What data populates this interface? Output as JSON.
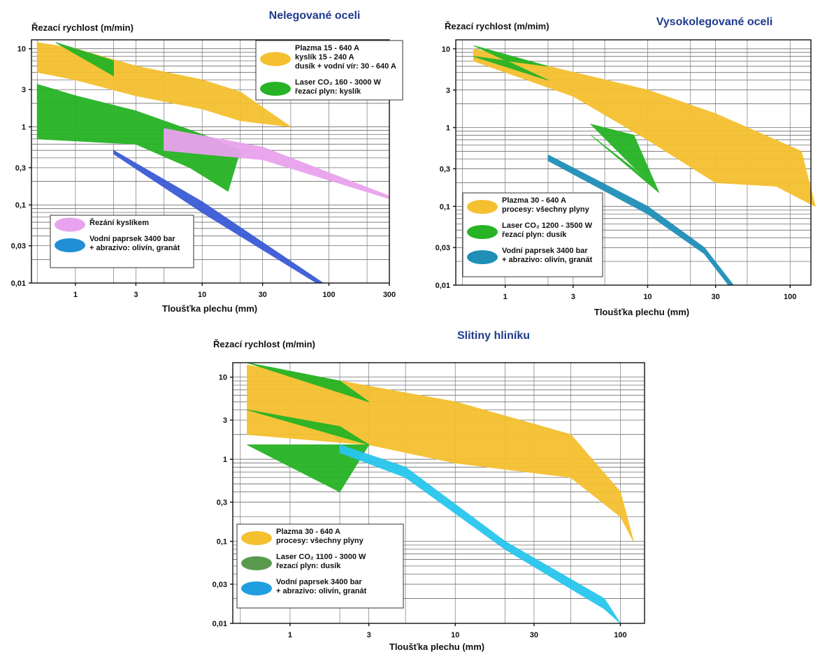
{
  "chart_data": [
    {
      "id": "nelegovane",
      "type": "area",
      "title": "Nelegované oceli",
      "ylabel": "Řezací rychlost (m/min)",
      "xlabel": "Tloušťka plechu (mm)",
      "x_scale": "log",
      "y_scale": "log",
      "xlim": [
        0.45,
        300
      ],
      "ylim": [
        0.01,
        13
      ],
      "xticks": [
        {
          "v": 1,
          "label": "1"
        },
        {
          "v": 3,
          "label": "3"
        },
        {
          "v": 10,
          "label": "10"
        },
        {
          "v": 30,
          "label": "30"
        },
        {
          "v": 100,
          "label": "100"
        },
        {
          "v": 300,
          "label": "300"
        }
      ],
      "yticks": [
        {
          "v": 10,
          "label": "10"
        },
        {
          "v": 3,
          "label": "3"
        },
        {
          "v": 1,
          "label": "1"
        },
        {
          "v": 0.3,
          "label": "0,3"
        },
        {
          "v": 0.1,
          "label": "0,1"
        },
        {
          "v": 0.03,
          "label": "0,03"
        },
        {
          "v": 0.01,
          "label": "0,01"
        }
      ],
      "grid": true,
      "legends": [
        {
          "position": "top-right",
          "entries": [
            {
              "color": "#f5c02f",
              "lines": [
                "Plazma 15 - 640 A",
                "kyslík 15 - 240 A",
                "dusík + vodní vír: 30 - 640 A"
              ]
            },
            {
              "color": "#27b325",
              "lines": [
                "Laser CO₂ 160 - 3000 W",
                "řezací plyn: kyslík"
              ]
            }
          ]
        },
        {
          "position": "bottom-left",
          "entries": [
            {
              "color": "#e9a3ee",
              "lines": [
                "Řezání kyslíkem"
              ]
            },
            {
              "color": "#1f8fd6",
              "lines": [
                "Vodní paprsek 3400 bar",
                "+ abrazivo: olivín, granát"
              ]
            }
          ]
        }
      ],
      "series": [
        {
          "color": "#f5c02f",
          "upper": [
            [
              0.5,
              12
            ],
            [
              1,
              10
            ],
            [
              3,
              6
            ],
            [
              10,
              4
            ],
            [
              20,
              2.8
            ],
            [
              50,
              1
            ]
          ],
          "lower": [
            [
              0.5,
              5
            ],
            [
              1,
              4
            ],
            [
              3,
              2.5
            ],
            [
              10,
              1.7
            ],
            [
              20,
              1.2
            ],
            [
              50,
              1
            ]
          ]
        },
        {
          "color": "#27b325",
          "upper": [
            [
              0.7,
              12
            ],
            [
              2,
              7
            ],
            [
              2,
              4.5
            ]
          ],
          "lower": [
            [
              2,
              4.5
            ],
            [
              0.7,
              12
            ]
          ]
        },
        {
          "color": "#27b325",
          "upper": [
            [
              0.5,
              3.5
            ],
            [
              1,
              2.5
            ],
            [
              3,
              1.6
            ],
            [
              10,
              0.8
            ],
            [
              20,
              0.5
            ]
          ],
          "lower": [
            [
              0.5,
              0.7
            ],
            [
              3,
              0.6
            ],
            [
              8,
              0.3
            ],
            [
              16,
              0.15
            ],
            [
              20,
              0.5
            ]
          ]
        },
        {
          "color": "#e9a3ee",
          "upper": [
            [
              5,
              0.95
            ],
            [
              30,
              0.55
            ],
            [
              300,
              0.13
            ]
          ],
          "lower": [
            [
              5,
              0.5
            ],
            [
              30,
              0.38
            ],
            [
              300,
              0.12
            ]
          ]
        },
        {
          "color": "#3b5bd6",
          "upper": [
            [
              2,
              0.5
            ],
            [
              10,
              0.11
            ],
            [
              90,
              0.01
            ]
          ],
          "lower": [
            [
              2,
              0.45
            ],
            [
              10,
              0.08
            ],
            [
              80,
              0.01
            ]
          ]
        }
      ]
    },
    {
      "id": "vysokolegovane",
      "type": "area",
      "title": "Vysokolegované oceli",
      "ylabel": "Řezací rychlost (m/mim)",
      "xlabel": "Tloušťka plechu (mm)",
      "x_scale": "log",
      "y_scale": "log",
      "xlim": [
        0.45,
        140
      ],
      "ylim": [
        0.01,
        13
      ],
      "xticks": [
        {
          "v": 1,
          "label": "1"
        },
        {
          "v": 3,
          "label": "3"
        },
        {
          "v": 10,
          "label": "10"
        },
        {
          "v": 30,
          "label": "30"
        },
        {
          "v": 100,
          "label": "100"
        }
      ],
      "yticks": [
        {
          "v": 10,
          "label": "10"
        },
        {
          "v": 3,
          "label": "3"
        },
        {
          "v": 1,
          "label": "1"
        },
        {
          "v": 0.3,
          "label": "0,3"
        },
        {
          "v": 0.1,
          "label": "0,1"
        },
        {
          "v": 0.03,
          "label": "0,03"
        },
        {
          "v": 0.01,
          "label": "0,01"
        }
      ],
      "grid": true,
      "legends": [
        {
          "position": "bottom-left",
          "entries": [
            {
              "color": "#f5c02f",
              "lines": [
                "Plazma 30 - 640 A",
                "procesy: všechny plyny"
              ]
            },
            {
              "color": "#27b325",
              "lines": [
                "Laser CO₂ 1200 - 3500 W",
                "řezací plyn: dusík"
              ]
            },
            {
              "color": "#1f8fb8",
              "lines": [
                "Vodní paprsek 3400 bar",
                "+ abrazivo: olivín, granát"
              ]
            }
          ]
        }
      ],
      "series": [
        {
          "color": "#f5c02f",
          "upper": [
            [
              0.6,
              10
            ],
            [
              2,
              6
            ],
            [
              10,
              3
            ],
            [
              30,
              1.5
            ],
            [
              120,
              0.5
            ],
            [
              150,
              0.1
            ]
          ],
          "lower": [
            [
              0.6,
              7
            ],
            [
              3,
              2.5
            ],
            [
              10,
              0.7
            ],
            [
              30,
              0.2
            ],
            [
              80,
              0.18
            ],
            [
              150,
              0.1
            ]
          ]
        },
        {
          "color": "#27b325",
          "upper": [
            [
              0.6,
              11
            ],
            [
              2,
              6
            ]
          ],
          "lower": [
            [
              2,
              4
            ],
            [
              0.6,
              8
            ]
          ]
        },
        {
          "color": "#27b325",
          "upper": [
            [
              4,
              1.1
            ],
            [
              8,
              0.8
            ],
            [
              12,
              0.15
            ]
          ],
          "lower": [
            [
              12,
              0.15
            ],
            [
              8,
              0.3
            ],
            [
              4,
              0.8
            ]
          ]
        },
        {
          "color": "#1f8fb8",
          "upper": [
            [
              2,
              0.45
            ],
            [
              10,
              0.1
            ],
            [
              25,
              0.03
            ],
            [
              40,
              0.01
            ]
          ],
          "lower": [
            [
              2,
              0.38
            ],
            [
              10,
              0.08
            ],
            [
              25,
              0.025
            ],
            [
              37,
              0.01
            ]
          ]
        }
      ]
    },
    {
      "id": "hlinik",
      "type": "area",
      "title": "Slitiny hliníku",
      "ylabel": "Řezací rychlost (m/min)",
      "xlabel": "Tloušťka plechu (mm)",
      "x_scale": "log",
      "y_scale": "log",
      "xlim": [
        0.45,
        140
      ],
      "ylim": [
        0.01,
        15
      ],
      "xticks": [
        {
          "v": 1,
          "label": "1"
        },
        {
          "v": 3,
          "label": "3"
        },
        {
          "v": 10,
          "label": "10"
        },
        {
          "v": 30,
          "label": "30"
        },
        {
          "v": 100,
          "label": "100"
        }
      ],
      "yticks": [
        {
          "v": 10,
          "label": "10"
        },
        {
          "v": 3,
          "label": "3"
        },
        {
          "v": 1,
          "label": "1"
        },
        {
          "v": 0.3,
          "label": "0,3"
        },
        {
          "v": 0.1,
          "label": "0,1"
        },
        {
          "v": 0.03,
          "label": "0,03"
        },
        {
          "v": 0.01,
          "label": "0,01"
        }
      ],
      "grid": true,
      "legends": [
        {
          "position": "bottom-left",
          "entries": [
            {
              "color": "#f5c02f",
              "lines": [
                "Plazma 30 - 640 A",
                "procesy: všechny plyny"
              ]
            },
            {
              "color": "#5a9a4f",
              "lines": [
                "Laser CO₂ 1100 - 3000 W",
                "řezací plyn: dusík"
              ]
            },
            {
              "color": "#1f9fe0",
              "lines": [
                "Vodní paprsek 3400 bar",
                "+ abrazivo: olivín, granát"
              ]
            }
          ]
        }
      ],
      "series": [
        {
          "color": "#f5c02f",
          "upper": [
            [
              0.55,
              14
            ],
            [
              2,
              9
            ],
            [
              10,
              5
            ],
            [
              50,
              2
            ],
            [
              100,
              0.4
            ],
            [
              120,
              0.1
            ]
          ],
          "lower": [
            [
              0.55,
              2
            ],
            [
              3,
              1.5
            ],
            [
              10,
              0.9
            ],
            [
              50,
              0.6
            ],
            [
              100,
              0.2
            ],
            [
              120,
              0.1
            ]
          ]
        },
        {
          "color": "#27b325",
          "upper": [
            [
              0.55,
              15
            ],
            [
              2,
              9
            ],
            [
              3,
              5
            ]
          ],
          "lower": [
            [
              3,
              5
            ],
            [
              0.55,
              15
            ]
          ]
        },
        {
          "color": "#27b325",
          "upper": [
            [
              0.55,
              4
            ],
            [
              2,
              2.5
            ],
            [
              3,
              1.5
            ]
          ],
          "lower": [
            [
              3,
              1.5
            ],
            [
              2,
              0.4
            ],
            [
              0.55,
              1.5
            ]
          ]
        },
        {
          "color": "#29c6ee",
          "upper": [
            [
              2,
              1.5
            ],
            [
              5,
              0.8
            ],
            [
              20,
              0.1
            ],
            [
              80,
              0.02
            ],
            [
              100,
              0.01
            ]
          ],
          "lower": [
            [
              2,
              1.2
            ],
            [
              5,
              0.6
            ],
            [
              20,
              0.08
            ],
            [
              80,
              0.015
            ],
            [
              100,
              0.01
            ]
          ]
        }
      ]
    }
  ]
}
